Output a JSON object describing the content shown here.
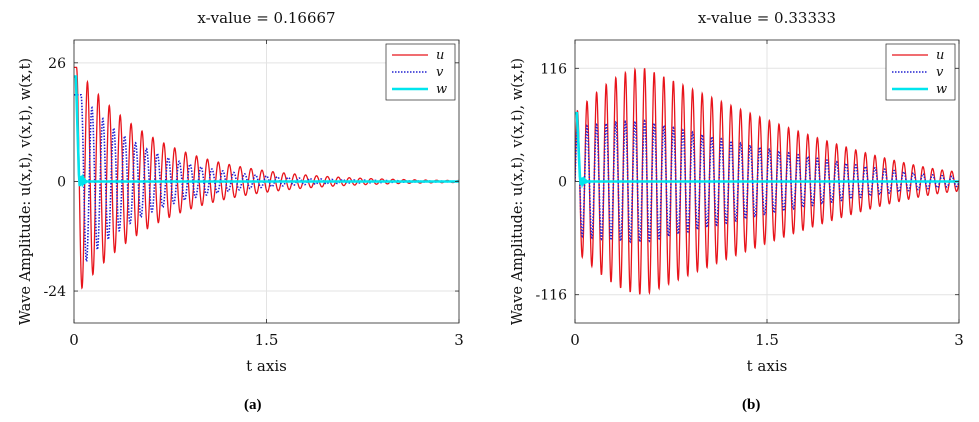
{
  "figure": {
    "captions": [
      "(a)",
      "(b)"
    ]
  },
  "chart_data": [
    {
      "type": "line",
      "title": "x-value = 0.16667",
      "xlabel": "t axis",
      "ylabel": "Wave Amplitude: u(x,t), v(x,t), w(x,t)",
      "xlim": [
        0,
        3
      ],
      "ylim": [
        -31,
        31
      ],
      "xticks": [
        0,
        1.5,
        3
      ],
      "xtick_labels": [
        "0",
        "1.5",
        "3"
      ],
      "yticks": [
        -24,
        0,
        26
      ],
      "ytick_labels": [
        "-24",
        "0",
        "26"
      ],
      "grid": true,
      "legend": {
        "position": "top-right",
        "entries": [
          "u",
          "v",
          "w"
        ]
      },
      "series": [
        {
          "name": "u",
          "color": "#e8141b",
          "style": "solid",
          "model": {
            "kind": "decaying_oscillation",
            "amplitude": 25,
            "decay": 1.6,
            "period": 0.085,
            "t0": 0.02
          }
        },
        {
          "name": "v",
          "color": "#2222d0",
          "style": "dotted",
          "model": {
            "kind": "decaying_oscillation",
            "amplitude": 19,
            "decay": 1.9,
            "period": 0.085,
            "t0": 0.055
          }
        },
        {
          "name": "w",
          "color": "#00e5ee",
          "style": "solid",
          "model": {
            "kind": "spike",
            "peak": 23,
            "settle_t": 0.1
          }
        }
      ]
    },
    {
      "type": "line",
      "title": "x-value = 0.33333",
      "xlabel": "t axis",
      "ylabel": "Wave Amplitude: u(x,t), v(x,t), w(x,t)",
      "xlim": [
        0,
        3
      ],
      "ylim": [
        -145,
        145
      ],
      "xticks": [
        0,
        1.5,
        3
      ],
      "xtick_labels": [
        "0",
        "1.5",
        "3"
      ],
      "yticks": [
        -116,
        0,
        116
      ],
      "ytick_labels": [
        "-116",
        "0",
        "116"
      ],
      "grid": true,
      "legend": {
        "position": "top-right",
        "entries": [
          "u",
          "v",
          "w"
        ]
      },
      "series": [
        {
          "name": "u",
          "color": "#e8141b",
          "style": "solid",
          "model": {
            "kind": "beating_oscillation",
            "peak": 116,
            "peak_t": 0.55,
            "start": 70,
            "end": 10,
            "period": 0.075
          }
        },
        {
          "name": "v",
          "color": "#2222d0",
          "style": "dotted",
          "model": {
            "kind": "beating_oscillation",
            "peak": 62,
            "peak_t": 0.55,
            "start": 55,
            "end": 5,
            "period": 0.075
          }
        },
        {
          "name": "w",
          "color": "#00e5ee",
          "style": "solid",
          "model": {
            "kind": "spike",
            "peak": 70,
            "settle_t": 0.1
          }
        }
      ]
    }
  ]
}
